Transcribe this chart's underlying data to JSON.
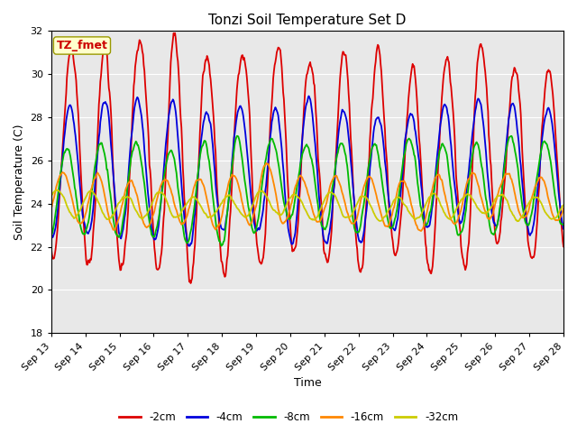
{
  "title": "Tonzi Soil Temperature Set D",
  "xlabel": "Time",
  "ylabel": "Soil Temperature (C)",
  "ylim": [
    18,
    32
  ],
  "background_color": "#e8e8e8",
  "legend_label": "TZ_fmet",
  "series": {
    "-2cm": {
      "color": "#dd0000",
      "lw": 1.3
    },
    "-4cm": {
      "color": "#0000dd",
      "lw": 1.3
    },
    "-8cm": {
      "color": "#00bb00",
      "lw": 1.3
    },
    "-16cm": {
      "color": "#ff8800",
      "lw": 1.3
    },
    "-32cm": {
      "color": "#cccc00",
      "lw": 1.3
    }
  },
  "xtick_labels": [
    "Sep 13",
    "Sep 14",
    "Sep 15",
    "Sep 16",
    "Sep 17",
    "Sep 18",
    "Sep 19",
    "Sep 20",
    "Sep 21",
    "Sep 22",
    "Sep 23",
    "Sep 24",
    "Sep 25",
    "Sep 26",
    "Sep 27",
    "Sep 28"
  ],
  "xtick_positions": [
    0,
    24,
    48,
    72,
    96,
    120,
    144,
    168,
    192,
    216,
    240,
    264,
    288,
    312,
    336,
    360
  ],
  "ytick_positions": [
    18,
    20,
    22,
    24,
    26,
    28,
    30,
    32
  ]
}
